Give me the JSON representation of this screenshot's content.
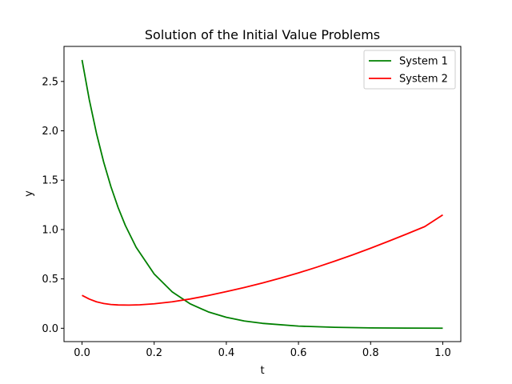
{
  "chart_data": {
    "type": "line",
    "title": "Solution of the Initial Value Problems",
    "xlabel": "t",
    "ylabel": "y",
    "xlim": [
      -0.05,
      1.05
    ],
    "ylim": [
      -0.135,
      2.855
    ],
    "xticks": [
      0.0,
      0.2,
      0.4,
      0.6,
      0.8,
      1.0
    ],
    "xtick_labels": [
      "0.0",
      "0.2",
      "0.4",
      "0.6",
      "0.8",
      "1.0"
    ],
    "yticks": [
      0.0,
      0.5,
      1.0,
      1.5,
      2.0,
      2.5
    ],
    "ytick_labels": [
      "0.0",
      "0.5",
      "1.0",
      "1.5",
      "2.0",
      "2.5"
    ],
    "grid": false,
    "legend_position": "top-right",
    "series": [
      {
        "name": "System 1",
        "color": "#008000",
        "x": [
          0.0,
          0.02,
          0.04,
          0.06,
          0.08,
          0.1,
          0.12,
          0.15,
          0.2,
          0.25,
          0.3,
          0.35,
          0.4,
          0.45,
          0.5,
          0.6,
          0.7,
          0.8,
          0.9,
          1.0
        ],
        "y": [
          2.718,
          2.317,
          1.975,
          1.683,
          1.435,
          1.223,
          1.042,
          0.82,
          0.55,
          0.368,
          0.247,
          0.166,
          0.111,
          0.074,
          0.05,
          0.022,
          0.01,
          0.004,
          0.002,
          0.001
        ]
      },
      {
        "name": "System 2",
        "color": "#ff0000",
        "x": [
          0.0,
          0.02,
          0.04,
          0.06,
          0.08,
          0.1,
          0.13,
          0.16,
          0.2,
          0.25,
          0.3,
          0.35,
          0.4,
          0.45,
          0.5,
          0.55,
          0.6,
          0.65,
          0.7,
          0.75,
          0.8,
          0.85,
          0.9,
          0.95,
          1.0
        ],
        "y": [
          0.333,
          0.296,
          0.268,
          0.251,
          0.241,
          0.236,
          0.235,
          0.238,
          0.248,
          0.268,
          0.297,
          0.332,
          0.371,
          0.413,
          0.459,
          0.508,
          0.561,
          0.618,
          0.679,
          0.743,
          0.811,
          0.882,
          0.955,
          1.03,
          1.148
        ]
      }
    ]
  }
}
